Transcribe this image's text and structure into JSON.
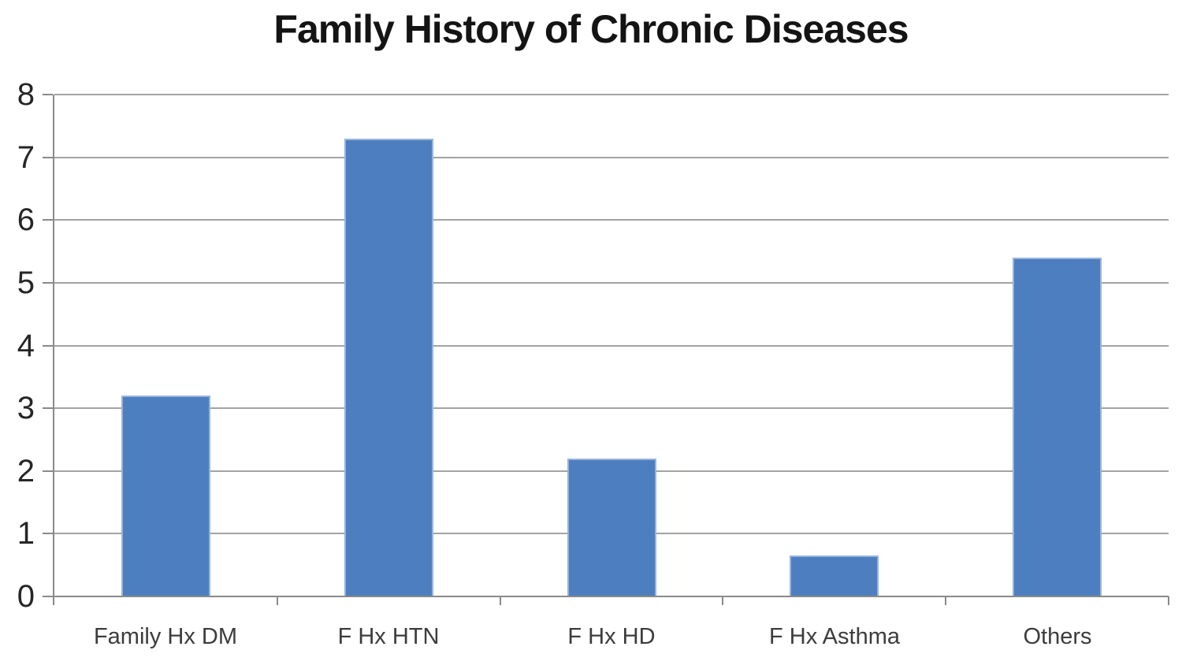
{
  "chart_data": {
    "type": "bar",
    "title": "Family History of Chronic Diseases",
    "categories": [
      "Family Hx DM",
      "F Hx HTN",
      "F Hx HD",
      "F Hx Asthma",
      "Others"
    ],
    "values": [
      3.2,
      7.3,
      2.2,
      0.65,
      5.4
    ],
    "xlabel": "",
    "ylabel": "",
    "ylim": [
      0,
      8
    ],
    "yticks": [
      0,
      1,
      2,
      3,
      4,
      5,
      6,
      7,
      8
    ],
    "grid": true,
    "legend": "none",
    "bar_color": "#4d7ec0",
    "gridline_color": "#a3a3a3",
    "axis_color": "#8a8a8a",
    "tick_color": "#8a8a8a",
    "title_color": "#141414",
    "ytick_label_color": "#262626",
    "xtick_label_color": "#3c3c3c",
    "background_color": "#ffffff"
  }
}
